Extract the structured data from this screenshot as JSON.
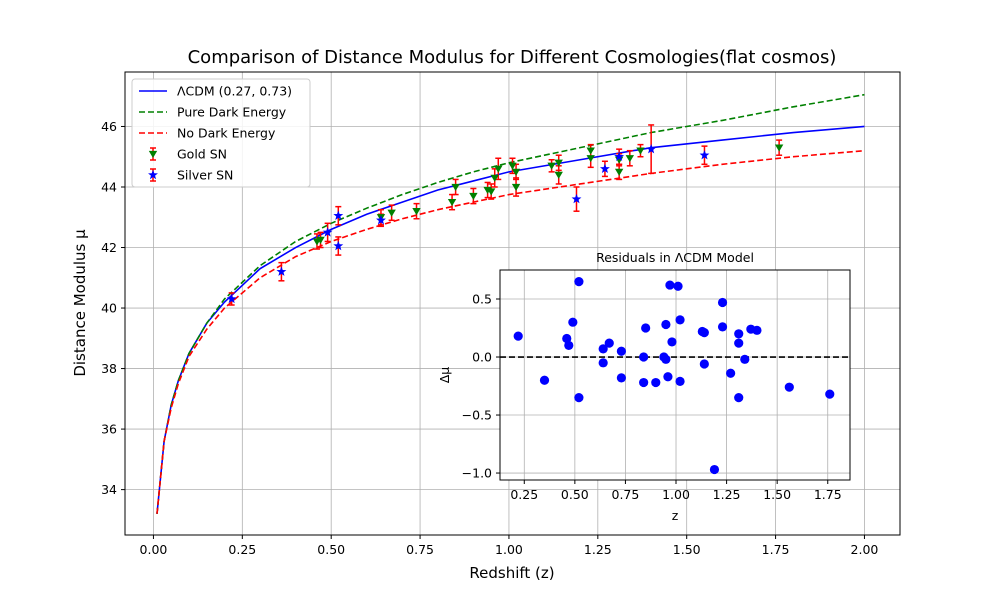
{
  "chart_data": [
    {
      "type": "line",
      "title": "Comparison of Distance Modulus for Different Cosmologies(flat cosmos)",
      "xlabel": "Redshift (z)",
      "ylabel": "Distance Modulus μ",
      "xlim": [
        -0.08,
        2.1
      ],
      "ylim": [
        32.5,
        47.8
      ],
      "xticks": [
        0.0,
        0.25,
        0.5,
        0.75,
        1.0,
        1.25,
        1.5,
        1.75,
        2.0
      ],
      "xtick_labels": [
        "0.00",
        "0.25",
        "0.50",
        "0.75",
        "1.00",
        "1.25",
        "1.50",
        "1.75",
        "2.00"
      ],
      "yticks": [
        34,
        36,
        38,
        40,
        42,
        44,
        46
      ],
      "ytick_labels": [
        "34",
        "36",
        "38",
        "40",
        "42",
        "44",
        "46"
      ],
      "grid": true,
      "legend_position": "top-left",
      "curves": [
        {
          "name": "ΛCDM (0.27, 0.73)",
          "color": "#0000ff",
          "dash": "solid",
          "x": [
            0.01,
            0.03,
            0.05,
            0.07,
            0.1,
            0.15,
            0.2,
            0.3,
            0.4,
            0.5,
            0.6,
            0.7,
            0.8,
            0.9,
            1.0,
            1.2,
            1.4,
            1.6,
            1.8,
            2.0
          ],
          "y": [
            33.2,
            35.6,
            36.8,
            37.6,
            38.5,
            39.5,
            40.2,
            41.3,
            42.0,
            42.6,
            43.1,
            43.5,
            43.9,
            44.2,
            44.5,
            44.9,
            45.3,
            45.55,
            45.8,
            46.0
          ]
        },
        {
          "name": "Pure Dark Energy",
          "color": "#008000",
          "dash": "dashed",
          "x": [
            0.01,
            0.03,
            0.05,
            0.07,
            0.1,
            0.15,
            0.2,
            0.3,
            0.4,
            0.5,
            0.6,
            0.7,
            0.8,
            0.9,
            1.0,
            1.2,
            1.4,
            1.6,
            1.8,
            2.0
          ],
          "y": [
            33.2,
            35.6,
            36.8,
            37.6,
            38.5,
            39.5,
            40.3,
            41.4,
            42.2,
            42.8,
            43.3,
            43.75,
            44.15,
            44.5,
            44.8,
            45.3,
            45.8,
            46.2,
            46.65,
            47.05
          ]
        },
        {
          "name": "No Dark Energy",
          "color": "#ff0000",
          "dash": "dashed",
          "x": [
            0.01,
            0.03,
            0.05,
            0.07,
            0.1,
            0.15,
            0.2,
            0.3,
            0.4,
            0.5,
            0.6,
            0.7,
            0.8,
            0.9,
            1.0,
            1.2,
            1.4,
            1.6,
            1.8,
            2.0
          ],
          "y": [
            33.2,
            35.6,
            36.7,
            37.5,
            38.4,
            39.3,
            40.0,
            41.0,
            41.7,
            42.2,
            42.6,
            42.95,
            43.25,
            43.5,
            43.75,
            44.1,
            44.45,
            44.75,
            45.0,
            45.2
          ]
        }
      ],
      "scatter_series": [
        {
          "name": "Gold SN",
          "color": "#008000",
          "marker": "triangle-down",
          "error_color": "#ff0000",
          "points": [
            {
              "x": 0.46,
              "y": 42.2,
              "err": 0.25
            },
            {
              "x": 0.47,
              "y": 42.25,
              "err": 0.25
            },
            {
              "x": 0.64,
              "y": 43.0,
              "err": 0.25
            },
            {
              "x": 0.67,
              "y": 43.15,
              "err": 0.25
            },
            {
              "x": 0.74,
              "y": 43.2,
              "err": 0.25
            },
            {
              "x": 0.84,
              "y": 43.5,
              "err": 0.25
            },
            {
              "x": 0.85,
              "y": 44.0,
              "err": 0.25
            },
            {
              "x": 0.9,
              "y": 43.7,
              "err": 0.25
            },
            {
              "x": 0.94,
              "y": 43.9,
              "err": 0.25
            },
            {
              "x": 0.95,
              "y": 43.85,
              "err": 0.25
            },
            {
              "x": 0.96,
              "y": 44.3,
              "err": 0.3
            },
            {
              "x": 0.97,
              "y": 44.6,
              "err": 0.35
            },
            {
              "x": 1.01,
              "y": 44.7,
              "err": 0.25
            },
            {
              "x": 1.02,
              "y": 44.5,
              "err": 0.25
            },
            {
              "x": 1.02,
              "y": 44.0,
              "err": 0.3
            },
            {
              "x": 1.12,
              "y": 44.7,
              "err": 0.2
            },
            {
              "x": 1.14,
              "y": 44.8,
              "err": 0.25
            },
            {
              "x": 1.14,
              "y": 44.4,
              "err": 0.3
            },
            {
              "x": 1.23,
              "y": 44.95,
              "err": 0.3
            },
            {
              "x": 1.23,
              "y": 45.2,
              "err": 0.2
            },
            {
              "x": 1.31,
              "y": 44.9,
              "err": 0.2
            },
            {
              "x": 1.31,
              "y": 44.5,
              "err": 0.25
            },
            {
              "x": 1.34,
              "y": 44.95,
              "err": 0.25
            },
            {
              "x": 1.37,
              "y": 45.2,
              "err": 0.2
            },
            {
              "x": 1.76,
              "y": 45.3,
              "err": 0.25
            }
          ]
        },
        {
          "name": "Silver SN",
          "color": "#0000ff",
          "marker": "star",
          "error_color": "#ff0000",
          "points": [
            {
              "x": 0.22,
              "y": 40.3,
              "err": 0.2
            },
            {
              "x": 0.36,
              "y": 41.2,
              "err": 0.3
            },
            {
              "x": 0.49,
              "y": 42.5,
              "err": 0.3
            },
            {
              "x": 0.52,
              "y": 43.05,
              "err": 0.3
            },
            {
              "x": 0.52,
              "y": 42.05,
              "err": 0.3
            },
            {
              "x": 0.64,
              "y": 42.9,
              "err": 0.2
            },
            {
              "x": 1.19,
              "y": 43.6,
              "err": 0.4
            },
            {
              "x": 1.27,
              "y": 44.6,
              "err": 0.25
            },
            {
              "x": 1.31,
              "y": 45.0,
              "err": 0.25
            },
            {
              "x": 1.4,
              "y": 45.25,
              "err": 0.8
            },
            {
              "x": 1.55,
              "y": 45.05,
              "err": 0.3
            }
          ]
        }
      ],
      "legend": [
        "ΛCDM (0.27, 0.73)",
        "Pure Dark Energy",
        "No Dark Energy",
        "Gold SN",
        "Silver SN"
      ]
    },
    {
      "type": "scatter",
      "title": "Residuals in ΛCDM Model",
      "xlabel": "z",
      "ylabel": "Δμ",
      "xlim": [
        0.13,
        1.86
      ],
      "ylim": [
        -1.06,
        0.75
      ],
      "xticks": [
        0.25,
        0.5,
        0.75,
        1.0,
        1.25,
        1.5,
        1.75
      ],
      "xtick_labels": [
        "0.25",
        "0.50",
        "0.75",
        "1.00",
        "1.25",
        "1.50",
        "1.75"
      ],
      "yticks": [
        -1.0,
        -0.5,
        0.0,
        0.5
      ],
      "ytick_labels": [
        "−1.0",
        "−0.5",
        "0.0",
        "0.5"
      ],
      "grid": true,
      "reference_line": 0.0,
      "point_color": "#0000ff",
      "points": [
        {
          "x": 0.22,
          "y": 0.18
        },
        {
          "x": 0.35,
          "y": -0.2
        },
        {
          "x": 0.46,
          "y": 0.16
        },
        {
          "x": 0.47,
          "y": 0.1
        },
        {
          "x": 0.49,
          "y": 0.3
        },
        {
          "x": 0.52,
          "y": 0.65
        },
        {
          "x": 0.52,
          "y": -0.35
        },
        {
          "x": 0.64,
          "y": 0.07
        },
        {
          "x": 0.64,
          "y": -0.05
        },
        {
          "x": 0.67,
          "y": 0.12
        },
        {
          "x": 0.73,
          "y": 0.05
        },
        {
          "x": 0.73,
          "y": -0.18
        },
        {
          "x": 0.84,
          "y": 0.0
        },
        {
          "x": 0.84,
          "y": -0.22
        },
        {
          "x": 0.85,
          "y": 0.25
        },
        {
          "x": 0.9,
          "y": -0.22
        },
        {
          "x": 0.94,
          "y": 0.0
        },
        {
          "x": 0.95,
          "y": 0.28
        },
        {
          "x": 0.95,
          "y": -0.02
        },
        {
          "x": 0.96,
          "y": -0.17
        },
        {
          "x": 0.97,
          "y": 0.62
        },
        {
          "x": 0.98,
          "y": 0.13
        },
        {
          "x": 1.01,
          "y": 0.61
        },
        {
          "x": 1.02,
          "y": 0.32
        },
        {
          "x": 1.02,
          "y": -0.21
        },
        {
          "x": 1.13,
          "y": 0.22
        },
        {
          "x": 1.14,
          "y": 0.21
        },
        {
          "x": 1.14,
          "y": -0.06
        },
        {
          "x": 1.19,
          "y": -0.97
        },
        {
          "x": 1.23,
          "y": 0.47
        },
        {
          "x": 1.23,
          "y": 0.26
        },
        {
          "x": 1.27,
          "y": -0.14
        },
        {
          "x": 1.31,
          "y": 0.2
        },
        {
          "x": 1.31,
          "y": 0.12
        },
        {
          "x": 1.31,
          "y": -0.35
        },
        {
          "x": 1.34,
          "y": -0.02
        },
        {
          "x": 1.37,
          "y": 0.24
        },
        {
          "x": 1.4,
          "y": 0.23
        },
        {
          "x": 1.56,
          "y": -0.26
        },
        {
          "x": 1.76,
          "y": -0.32
        }
      ]
    }
  ]
}
